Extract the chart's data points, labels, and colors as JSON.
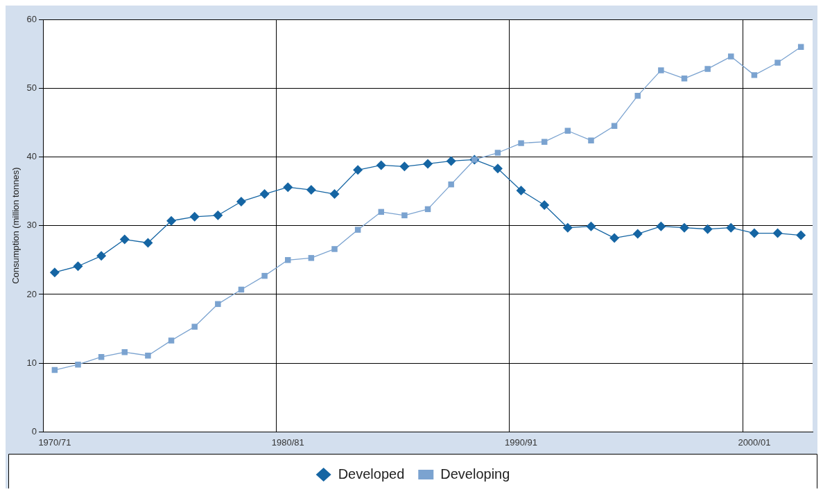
{
  "chart_data": {
    "type": "line",
    "ylabel": "Consumption (million tonnes)",
    "categories": [
      "1970/71",
      null,
      null,
      null,
      null,
      null,
      null,
      null,
      null,
      null,
      "1980/81",
      null,
      null,
      null,
      null,
      null,
      null,
      null,
      null,
      null,
      "1990/91",
      null,
      null,
      null,
      null,
      null,
      null,
      null,
      null,
      null,
      "2000/01",
      null,
      null
    ],
    "series": [
      {
        "name": "Developed",
        "color": "#1565a3",
        "marker": "diamond",
        "values": [
          23.2,
          24.1,
          25.6,
          28.0,
          27.5,
          30.7,
          31.3,
          31.5,
          33.5,
          34.6,
          35.6,
          35.2,
          34.6,
          38.1,
          38.8,
          38.6,
          39.0,
          39.4,
          39.6,
          38.3,
          35.1,
          33.0,
          29.7,
          29.9,
          28.2,
          28.8,
          29.9,
          29.7,
          29.5,
          29.7,
          28.9,
          28.9,
          28.6
        ]
      },
      {
        "name": "Developing",
        "color": "#7ba3d0",
        "marker": "square",
        "values": [
          9.0,
          9.8,
          10.9,
          11.6,
          11.1,
          13.3,
          15.3,
          18.6,
          20.7,
          22.7,
          25.0,
          25.3,
          26.6,
          29.4,
          32.0,
          31.5,
          32.4,
          36.0,
          39.6,
          40.6,
          42.0,
          42.2,
          43.8,
          42.4,
          44.5,
          48.9,
          52.6,
          51.4,
          52.8,
          54.6,
          51.9,
          53.7,
          56.0
        ]
      }
    ],
    "ylim": [
      0,
      60
    ],
    "yticks": [
      0,
      10,
      20,
      30,
      40,
      50,
      60
    ],
    "grid": true,
    "legend": "bottom",
    "line_style": "solid"
  }
}
